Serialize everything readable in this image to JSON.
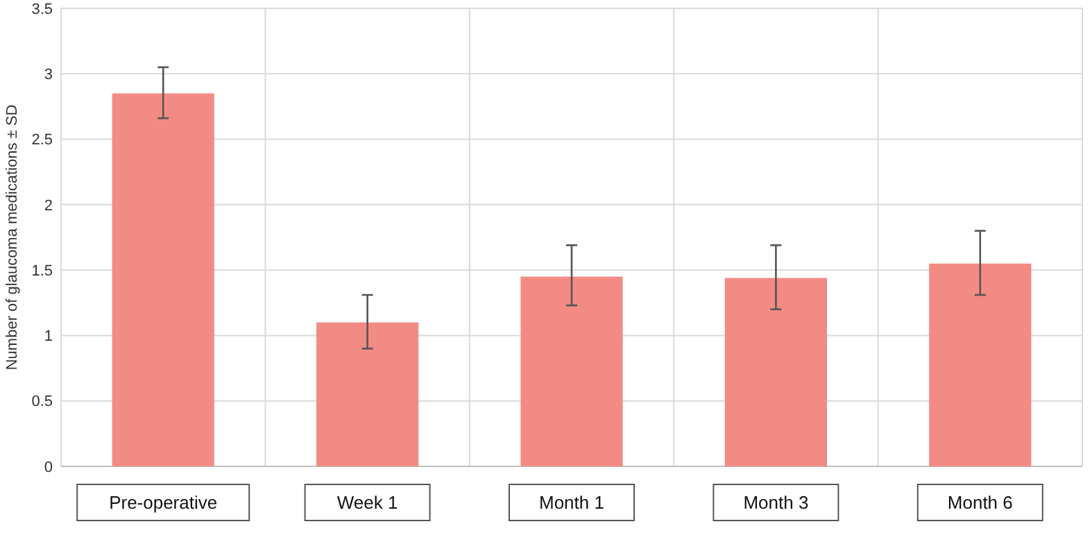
{
  "chart_data": {
    "type": "bar",
    "ylabel": "Number of glaucoma medications  ± SD",
    "categories": [
      "Pre-operative",
      "Week 1",
      "Month 1",
      "Month 3",
      "Month 6"
    ],
    "values": [
      2.85,
      1.1,
      1.45,
      1.44,
      1.55
    ],
    "errors": [
      [
        2.66,
        3.05
      ],
      [
        0.9,
        1.31
      ],
      [
        1.23,
        1.69
      ],
      [
        1.2,
        1.69
      ],
      [
        1.31,
        1.8
      ]
    ],
    "color": "#f28b84",
    "ylim": [
      0,
      3.5
    ],
    "yticks": [
      {
        "value": 0,
        "label": "0"
      },
      {
        "value": 0.5,
        "label": "0.5"
      },
      {
        "value": 1,
        "label": "1"
      },
      {
        "value": 1.5,
        "label": "1.5"
      },
      {
        "value": 2,
        "label": "2"
      },
      {
        "value": 2.5,
        "label": "2.5"
      },
      {
        "value": 3,
        "label": "3"
      },
      {
        "value": 3.5,
        "label": "3.5"
      }
    ],
    "grid": true
  }
}
